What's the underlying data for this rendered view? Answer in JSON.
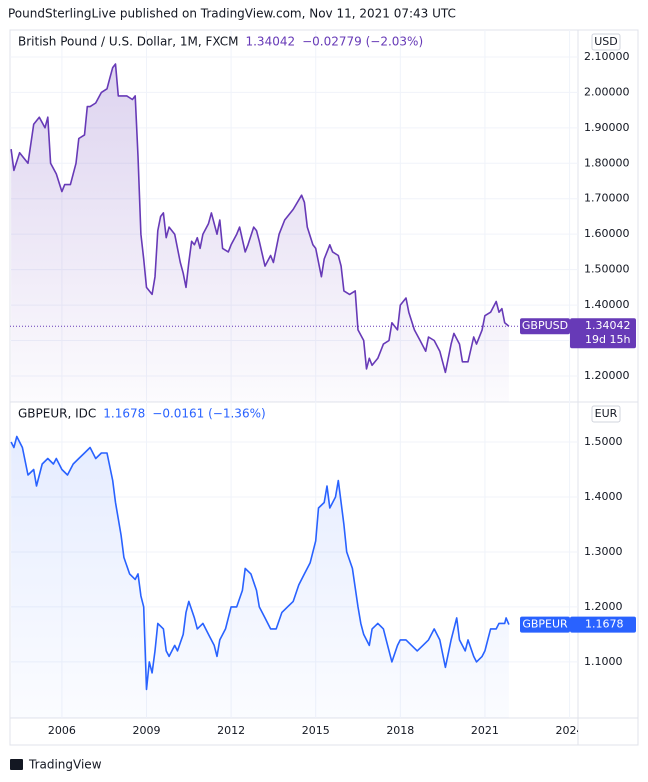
{
  "header": {
    "text": "PoundSterlingLive published on TradingView.com, Nov 11, 2021 07:43 UTC"
  },
  "footer": {
    "text": "TradingView"
  },
  "chart_data": [
    {
      "type": "line",
      "title": "British Pound / U.S. Dollar, 1M, FXCM",
      "last_value": 1.34042,
      "change": "−0.02779 (−2.03%)",
      "countdown": "19d 15h",
      "currency": "USD",
      "x": [
        2004.2,
        2004.3,
        2004.5,
        2004.8,
        2005.0,
        2005.2,
        2005.4,
        2005.5,
        2005.6,
        2005.8,
        2006.0,
        2006.1,
        2006.3,
        2006.5,
        2006.6,
        2006.8,
        2006.9,
        2007.0,
        2007.2,
        2007.4,
        2007.6,
        2007.7,
        2007.8,
        2007.9,
        2008.0,
        2008.3,
        2008.5,
        2008.6,
        2008.7,
        2008.8,
        2008.9,
        2009.0,
        2009.2,
        2009.3,
        2009.4,
        2009.5,
        2009.6,
        2009.7,
        2009.8,
        2010.0,
        2010.2,
        2010.3,
        2010.4,
        2010.5,
        2010.6,
        2010.7,
        2010.8,
        2010.9,
        2011.0,
        2011.2,
        2011.3,
        2011.5,
        2011.6,
        2011.7,
        2011.9,
        2012.0,
        2012.2,
        2012.3,
        2012.5,
        2012.6,
        2012.8,
        2012.9,
        2013.0,
        2013.2,
        2013.4,
        2013.5,
        2013.7,
        2013.9,
        2014.0,
        2014.2,
        2014.5,
        2014.6,
        2014.7,
        2014.9,
        2015.0,
        2015.2,
        2015.3,
        2015.5,
        2015.6,
        2015.8,
        2015.9,
        2016.0,
        2016.2,
        2016.4,
        2016.5,
        2016.7,
        2016.8,
        2016.9,
        2017.0,
        2017.2,
        2017.4,
        2017.6,
        2017.7,
        2017.9,
        2018.0,
        2018.2,
        2018.3,
        2018.5,
        2018.7,
        2018.9,
        2019.0,
        2019.2,
        2019.4,
        2019.6,
        2019.8,
        2019.9,
        2020.1,
        2020.2,
        2020.4,
        2020.6,
        2020.7,
        2020.9,
        2021.0,
        2021.2,
        2021.4,
        2021.5,
        2021.6,
        2021.7,
        2021.85
      ],
      "series": [
        {
          "name": "GBPUSD",
          "color": "#673ab7",
          "values": [
            1.84,
            1.78,
            1.83,
            1.8,
            1.91,
            1.93,
            1.9,
            1.93,
            1.8,
            1.77,
            1.72,
            1.74,
            1.74,
            1.8,
            1.87,
            1.88,
            1.96,
            1.96,
            1.97,
            2.0,
            2.01,
            2.04,
            2.07,
            2.08,
            1.99,
            1.99,
            1.98,
            1.99,
            1.82,
            1.6,
            1.53,
            1.45,
            1.43,
            1.48,
            1.61,
            1.65,
            1.66,
            1.59,
            1.62,
            1.6,
            1.52,
            1.49,
            1.45,
            1.52,
            1.58,
            1.57,
            1.59,
            1.56,
            1.6,
            1.63,
            1.66,
            1.6,
            1.64,
            1.56,
            1.55,
            1.57,
            1.6,
            1.62,
            1.55,
            1.57,
            1.62,
            1.61,
            1.58,
            1.51,
            1.54,
            1.52,
            1.6,
            1.64,
            1.65,
            1.67,
            1.71,
            1.69,
            1.62,
            1.57,
            1.56,
            1.48,
            1.53,
            1.57,
            1.55,
            1.54,
            1.51,
            1.44,
            1.43,
            1.44,
            1.33,
            1.3,
            1.22,
            1.25,
            1.23,
            1.25,
            1.29,
            1.3,
            1.35,
            1.33,
            1.4,
            1.42,
            1.38,
            1.33,
            1.3,
            1.27,
            1.31,
            1.3,
            1.27,
            1.21,
            1.29,
            1.32,
            1.29,
            1.24,
            1.24,
            1.31,
            1.29,
            1.33,
            1.37,
            1.38,
            1.41,
            1.38,
            1.39,
            1.35,
            1.34042
          ]
        }
      ],
      "xlim": [
        2004.16,
        2024.3
      ],
      "ylim": [
        1.1266,
        2.176
      ],
      "yticks": [
        {
          "value": 1.2,
          "label": "1.20000"
        },
        {
          "value": 1.3,
          "label": "1.30000"
        },
        {
          "value": 1.4,
          "label": "1.40000"
        },
        {
          "value": 1.5,
          "label": "1.50000"
        },
        {
          "value": 1.6,
          "label": "1.60000"
        },
        {
          "value": 1.7,
          "label": "1.70000"
        },
        {
          "value": 1.8,
          "label": "1.80000"
        },
        {
          "value": 1.9,
          "label": "1.90000"
        },
        {
          "value": 2.0,
          "label": "2.00000"
        },
        {
          "value": 2.1,
          "label": "2.10000"
        }
      ],
      "grid": true
    },
    {
      "type": "line",
      "title": "GBPEUR, IDC",
      "last_value": 1.1678,
      "change": "−0.0161 (−1.36%)",
      "currency": "EUR",
      "x": [
        2004.2,
        2004.3,
        2004.4,
        2004.6,
        2004.8,
        2005.0,
        2005.1,
        2005.3,
        2005.5,
        2005.7,
        2005.8,
        2006.0,
        2006.2,
        2006.4,
        2006.6,
        2006.8,
        2007.0,
        2007.2,
        2007.4,
        2007.6,
        2007.8,
        2007.9,
        2008.1,
        2008.2,
        2008.4,
        2008.6,
        2008.7,
        2008.8,
        2008.9,
        2009.0,
        2009.1,
        2009.2,
        2009.3,
        2009.4,
        2009.6,
        2009.7,
        2009.8,
        2010.0,
        2010.1,
        2010.3,
        2010.4,
        2010.5,
        2010.7,
        2010.8,
        2011.0,
        2011.2,
        2011.4,
        2011.5,
        2011.6,
        2011.8,
        2012.0,
        2012.2,
        2012.4,
        2012.5,
        2012.7,
        2012.9,
        2013.0,
        2013.2,
        2013.4,
        2013.6,
        2013.8,
        2014.0,
        2014.2,
        2014.4,
        2014.6,
        2014.8,
        2015.0,
        2015.1,
        2015.3,
        2015.4,
        2015.5,
        2015.7,
        2015.8,
        2016.0,
        2016.1,
        2016.3,
        2016.5,
        2016.6,
        2016.7,
        2016.9,
        2017.0,
        2017.2,
        2017.4,
        2017.5,
        2017.7,
        2017.9,
        2018.0,
        2018.2,
        2018.4,
        2018.6,
        2018.8,
        2019.0,
        2019.2,
        2019.4,
        2019.6,
        2019.8,
        2020.0,
        2020.1,
        2020.3,
        2020.4,
        2020.6,
        2020.7,
        2020.9,
        2021.0,
        2021.2,
        2021.4,
        2021.5,
        2021.7,
        2021.75,
        2021.85
      ],
      "series": [
        {
          "name": "GBPEUR",
          "color": "#2962ff",
          "values": [
            1.5,
            1.49,
            1.51,
            1.49,
            1.44,
            1.45,
            1.42,
            1.46,
            1.47,
            1.46,
            1.47,
            1.45,
            1.44,
            1.46,
            1.47,
            1.48,
            1.49,
            1.47,
            1.48,
            1.48,
            1.43,
            1.39,
            1.33,
            1.29,
            1.26,
            1.25,
            1.26,
            1.22,
            1.2,
            1.05,
            1.1,
            1.08,
            1.12,
            1.17,
            1.16,
            1.12,
            1.11,
            1.13,
            1.12,
            1.15,
            1.19,
            1.21,
            1.18,
            1.16,
            1.17,
            1.15,
            1.13,
            1.11,
            1.14,
            1.16,
            1.2,
            1.2,
            1.23,
            1.27,
            1.26,
            1.23,
            1.2,
            1.18,
            1.16,
            1.16,
            1.19,
            1.2,
            1.21,
            1.24,
            1.26,
            1.28,
            1.32,
            1.38,
            1.39,
            1.42,
            1.38,
            1.4,
            1.43,
            1.35,
            1.3,
            1.27,
            1.2,
            1.17,
            1.15,
            1.13,
            1.16,
            1.17,
            1.16,
            1.14,
            1.1,
            1.13,
            1.14,
            1.14,
            1.13,
            1.12,
            1.13,
            1.14,
            1.16,
            1.14,
            1.09,
            1.14,
            1.18,
            1.14,
            1.12,
            1.14,
            1.11,
            1.1,
            1.11,
            1.12,
            1.16,
            1.16,
            1.17,
            1.17,
            1.18,
            1.1678
          ]
        }
      ],
      "xlim": [
        2004.16,
        2024.3
      ],
      "ylim": [
        0.998,
        1.5727
      ],
      "yticks": [
        {
          "value": 1.1,
          "label": "1.1000"
        },
        {
          "value": 1.2,
          "label": "1.2000"
        },
        {
          "value": 1.3,
          "label": "1.3000"
        },
        {
          "value": 1.4,
          "label": "1.4000"
        },
        {
          "value": 1.5,
          "label": "1.5000"
        }
      ],
      "xticks": [
        2006,
        2009,
        2012,
        2015,
        2018,
        2021,
        2024
      ],
      "grid": true
    }
  ]
}
